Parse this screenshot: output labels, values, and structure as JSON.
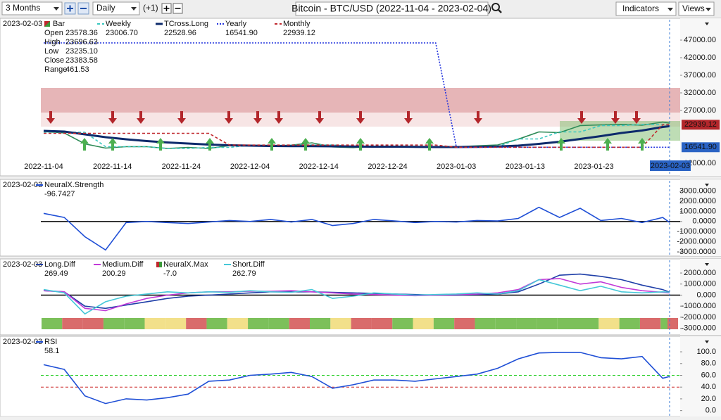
{
  "toolbar": {
    "period": "3 Months",
    "interval": "Daily",
    "offset": "(+1)",
    "title": "Bitcoin - BTC/USD (2022-11-04 - 2023-02-04)",
    "indicators": "Indicators",
    "views": "Views"
  },
  "xlim": [
    "2022-11-04",
    "2023-02-03"
  ],
  "x": [
    "2022-11-04",
    "2022-11-07",
    "2022-11-10",
    "2022-11-13",
    "2022-11-16",
    "2022-11-19",
    "2022-11-22",
    "2022-11-25",
    "2022-11-28",
    "2022-12-01",
    "2022-12-04",
    "2022-12-07",
    "2022-12-10",
    "2022-12-13",
    "2022-12-16",
    "2022-12-19",
    "2022-12-22",
    "2022-12-25",
    "2022-12-28",
    "2022-12-31",
    "2023-01-03",
    "2023-01-06",
    "2023-01-09",
    "2023-01-12",
    "2023-01-15",
    "2023-01-18",
    "2023-01-21",
    "2023-01-24",
    "2023-01-27",
    "2023-01-30",
    "2023-02-02",
    "2023-02-03"
  ],
  "xticks": [
    "2022-11-04",
    "2022-11-14",
    "2022-11-24",
    "2022-12-04",
    "2022-12-14",
    "2022-12-24",
    "2023-01-03",
    "2023-01-13",
    "2023-01-23"
  ],
  "panels": [
    {
      "date": "2023-02-03",
      "ylim": [
        8400,
        52800
      ],
      "yticks": [
        {
          "value": 47000,
          "label": "47000.00"
        },
        {
          "value": 42000,
          "label": "42000.00"
        },
        {
          "value": 37000,
          "label": "37000.00"
        },
        {
          "value": 32000,
          "label": "32000.00"
        },
        {
          "value": 27000,
          "label": "27000.00"
        },
        {
          "value": 12000,
          "label": "12000.00"
        }
      ],
      "ohlc": [
        {
          "label": "Open",
          "value": "23578.36"
        },
        {
          "label": "High",
          "value": "23696.63"
        },
        {
          "label": "Low",
          "value": "23235.10"
        },
        {
          "label": "Close",
          "value": "23383.58"
        },
        {
          "label": "Range",
          "value": "461.53"
        }
      ],
      "series": [
        {
          "name": "Bar",
          "color": "#2e8b57",
          "values": [
            21000,
            20600,
            17500,
            16300,
            16700,
            16700,
            16200,
            16500,
            16200,
            17000,
            17100,
            16850,
            17150,
            17800,
            16650,
            16450,
            16800,
            16850,
            16550,
            16550,
            16700,
            16950,
            17200,
            18850,
            20900,
            20700,
            22700,
            22900,
            23050,
            22800,
            23700,
            23383.58
          ]
        },
        {
          "name": "Weekly",
          "value_label": "23006.70",
          "color": "#3cc8c0",
          "dash": "4 3",
          "values": [
            20800,
            20800,
            20800,
            16700,
            16700,
            16700,
            16200,
            16200,
            16500,
            16500,
            17100,
            17100,
            17100,
            17200,
            17200,
            16800,
            16800,
            16800,
            16800,
            16550,
            16550,
            16700,
            16700,
            18900,
            18900,
            20900,
            20900,
            22700,
            22700,
            23000,
            23000,
            23006.7
          ]
        },
        {
          "name": "TCross.Long",
          "value_label": "22528.96",
          "color": "#0d2a6b",
          "width": 3,
          "values": [
            21200,
            21000,
            20200,
            19400,
            18800,
            18300,
            17900,
            17600,
            17300,
            17100,
            17000,
            16900,
            16850,
            16850,
            16800,
            16750,
            16700,
            16700,
            16650,
            16600,
            16600,
            16650,
            16750,
            17000,
            17500,
            18100,
            18900,
            19700,
            20600,
            21300,
            22300,
            22528.96
          ]
        },
        {
          "name": "Yearly",
          "value_label": "16541.90",
          "color": "#2233dd",
          "dash": "2 2",
          "box": "#2a63c4",
          "values": [
            46200,
            46200,
            46200,
            46200,
            46200,
            46200,
            46200,
            46200,
            46200,
            46200,
            46200,
            46200,
            46200,
            46200,
            46200,
            46200,
            46200,
            46200,
            46200,
            46200,
            16541.9,
            16541.9,
            16541.9,
            16541.9,
            16541.9,
            16541.9,
            16541.9,
            16541.9,
            16541.9,
            16541.9,
            16541.9,
            16541.9
          ]
        },
        {
          "name": "Monthly",
          "value_label": "22939.12",
          "color": "#c0272d",
          "dash": "4 3",
          "box": "#b3262b",
          "values": [
            20500,
            20500,
            20500,
            20500,
            20500,
            20500,
            20500,
            20500,
            20500,
            17168,
            17168,
            17168,
            17168,
            17168,
            17168,
            17168,
            17168,
            17168,
            17168,
            17168,
            16548,
            16548,
            16548,
            16548,
            16548,
            16548,
            16548,
            16548,
            16548,
            16548,
            22939.12,
            22939.12
          ]
        }
      ]
    },
    {
      "date": "2023-02-03",
      "ylim": [
        -3400,
        4000
      ],
      "yticks": [
        {
          "value": 3000,
          "label": "3000.0000"
        },
        {
          "value": 2000,
          "label": "2000.0000"
        },
        {
          "value": 1000,
          "label": "1000.0000"
        },
        {
          "value": 0,
          "label": "0.0000"
        },
        {
          "value": -1000,
          "label": "-1000.0000"
        },
        {
          "value": -2000,
          "label": "-2000.0000"
        },
        {
          "value": -3000,
          "label": "-3000.0000"
        }
      ],
      "series": [
        {
          "name": "NeuralX.Strength",
          "value_label": "-96.7427",
          "value_color": "#d0202a",
          "color": "#1f4fd6",
          "values": [
            800,
            400,
            -1500,
            -2800,
            -100,
            0,
            -100,
            -200,
            -50,
            100,
            0,
            200,
            -50,
            200,
            -400,
            -200,
            200,
            50,
            -100,
            0,
            -50,
            100,
            50,
            300,
            1400,
            400,
            1300,
            100,
            300,
            -100,
            400,
            -96.7427
          ]
        }
      ]
    },
    {
      "date": "2023-02-03",
      "ylim": [
        -3600,
        3150
      ],
      "yticks": [
        {
          "value": 2000,
          "label": "2000.000"
        },
        {
          "value": 1000,
          "label": "1000.000"
        },
        {
          "value": 0,
          "label": "0.000"
        },
        {
          "value": -1000,
          "label": "-1000.000"
        },
        {
          "value": -2000,
          "label": "-2000.000"
        },
        {
          "value": -3000,
          "label": "-3000.000"
        }
      ],
      "series": [
        {
          "name": "Long.Diff",
          "value_label": "269.49",
          "color": "#1f3fa8",
          "values": [
            400,
            300,
            -1000,
            -1200,
            -900,
            -600,
            -300,
            -100,
            0,
            100,
            200,
            300,
            300,
            300,
            250,
            200,
            150,
            100,
            50,
            0,
            0,
            50,
            100,
            300,
            1000,
            1800,
            1900,
            1700,
            1400,
            900,
            500,
            269.49
          ]
        },
        {
          "name": "Medium.Diff",
          "value_label": "200.29",
          "color": "#c23ad8",
          "values": [
            400,
            300,
            -1200,
            -1400,
            -800,
            -300,
            0,
            200,
            300,
            300,
            350,
            350,
            400,
            300,
            200,
            100,
            50,
            0,
            -50,
            0,
            50,
            100,
            200,
            500,
            1400,
            1500,
            1000,
            1200,
            700,
            400,
            250,
            200.29
          ]
        },
        {
          "name": "NeuralX.Max",
          "value_label": "-7.0",
          "value_color": "#d0202a",
          "strip": true,
          "strip_colors": [
            "#7cc05a",
            "#d96b6b",
            "#d96b6b",
            "#7cc05a",
            "#7cc05a",
            "#f2e08a",
            "#f2e08a",
            "#d96b6b",
            "#7cc05a",
            "#f2e08a",
            "#7cc05a",
            "#7cc05a",
            "#d96b6b",
            "#7cc05a",
            "#f2e08a",
            "#d96b6b",
            "#d96b6b",
            "#7cc05a",
            "#f2e08a",
            "#7cc05a",
            "#d96b6b",
            "#7cc05a",
            "#7cc05a",
            "#7cc05a",
            "#7cc05a",
            "#7cc05a",
            "#7cc05a",
            "#f2e08a",
            "#7cc05a",
            "#d96b6b",
            "#7cc05a",
            "#d96b6b"
          ]
        },
        {
          "name": "Short.Diff",
          "value_label": "262.79",
          "color": "#46c8d8",
          "values": [
            500,
            200,
            -1700,
            -600,
            -100,
            100,
            300,
            200,
            300,
            250,
            400,
            300,
            250,
            500,
            -300,
            -100,
            200,
            100,
            0,
            50,
            100,
            200,
            100,
            400,
            1400,
            900,
            400,
            800,
            300,
            200,
            300,
            262.79
          ]
        }
      ]
    },
    {
      "date": "2023-02-03",
      "ylim": [
        -10,
        124
      ],
      "yticks": [
        {
          "value": 100,
          "label": "100.0"
        },
        {
          "value": 80,
          "label": "80.0"
        },
        {
          "value": 60,
          "label": "60.0"
        },
        {
          "value": 40,
          "label": "40.0"
        },
        {
          "value": 20,
          "label": "20.0"
        },
        {
          "value": 0,
          "label": "0.0"
        }
      ],
      "levels": [
        {
          "value": 60,
          "color": "#22cc22"
        },
        {
          "value": 40,
          "color": "#cc2222"
        }
      ],
      "series": [
        {
          "name": "RSI",
          "value_label": "58.1",
          "color": "#1f4fd6",
          "values": [
            78,
            70,
            25,
            12,
            20,
            18,
            22,
            28,
            50,
            52,
            60,
            62,
            65,
            58,
            38,
            44,
            52,
            52,
            50,
            54,
            58,
            62,
            72,
            88,
            98,
            99,
            99,
            90,
            88,
            92,
            55,
            58.1
          ]
        }
      ]
    }
  ]
}
